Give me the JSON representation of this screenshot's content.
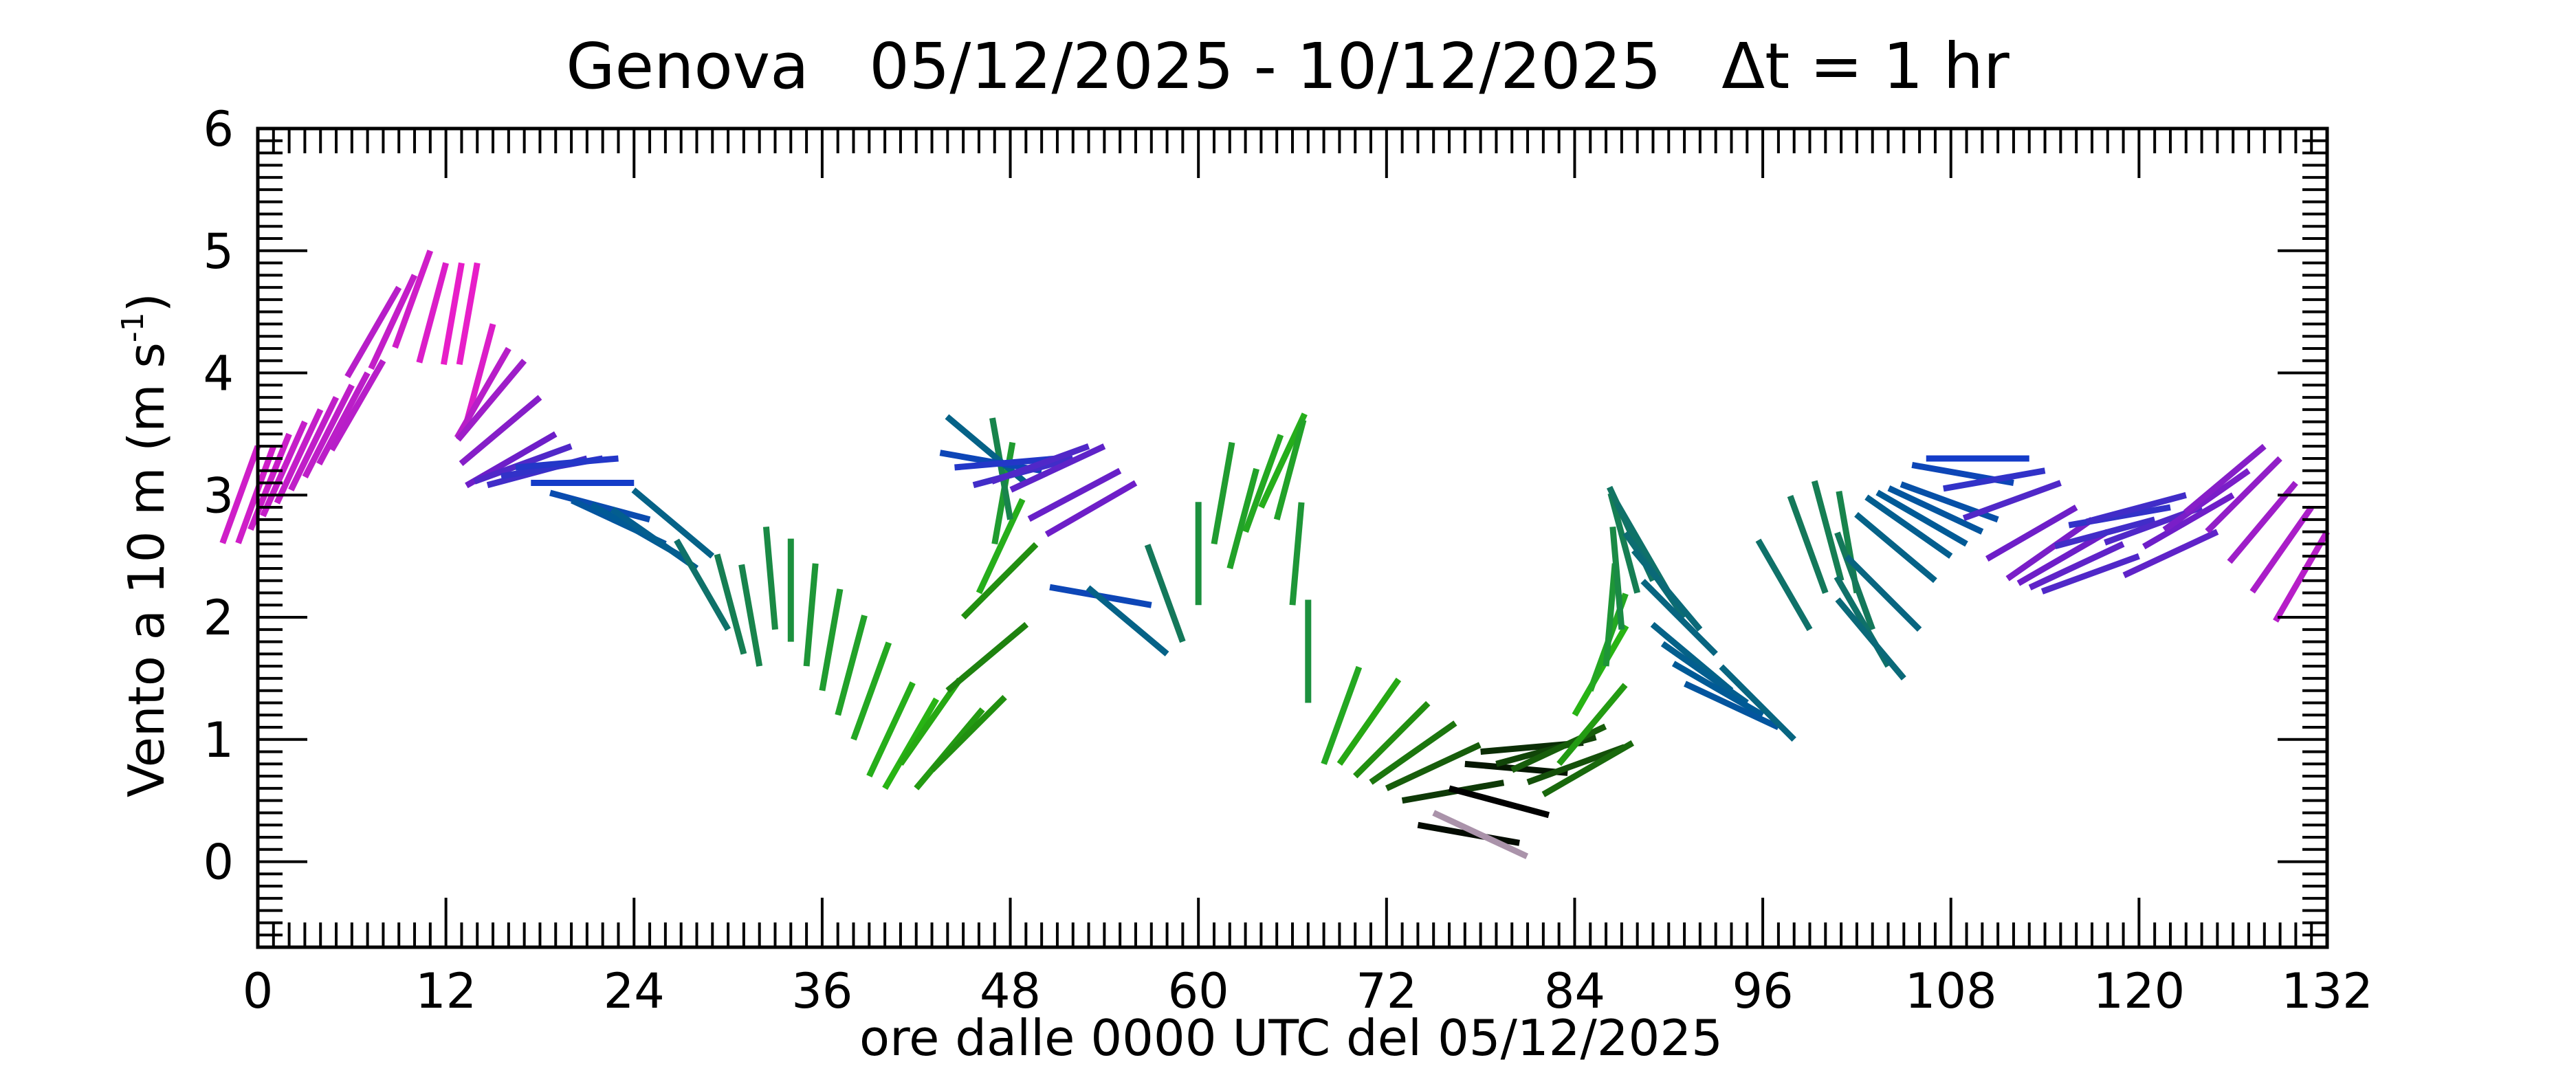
{
  "chart_data": {
    "type": "line",
    "title": "Genova   05/12/2025 - 10/12/2025   Δt = 1 hr",
    "xlabel": "ore dalle 0000 UTC del 05/12/2025",
    "ylabel": "Vento a 10 m (m s",
    "ylabel_exponent": "-1",
    "ylabel_close": ")",
    "xlim": [
      0,
      132
    ],
    "ylim": [
      -0.7,
      6
    ],
    "xticks": [
      0,
      12,
      24,
      36,
      48,
      60,
      72,
      84,
      96,
      108,
      120,
      132
    ],
    "yticks": [
      0,
      1,
      2,
      3,
      4,
      5,
      6
    ],
    "grid": false,
    "legend": "none",
    "glyph": "wind stick: segment anchored at the speed value, oriented by wind direction, coloured by direction",
    "series": [
      {
        "x": [
          0,
          1,
          2,
          3,
          4,
          5,
          6,
          7,
          8,
          9,
          10,
          11,
          12,
          13,
          14,
          15,
          16,
          17,
          18,
          19,
          20,
          21,
          22,
          23,
          24,
          25,
          26,
          27,
          28,
          29,
          30,
          31,
          32,
          33,
          34,
          35,
          36,
          37,
          38,
          39,
          40,
          41,
          42,
          43,
          44,
          45,
          46,
          47,
          48,
          49,
          50,
          51,
          52,
          53,
          54,
          55,
          56,
          57,
          58,
          59,
          60,
          61,
          62,
          63,
          64,
          65,
          66,
          67,
          68,
          69,
          70,
          71,
          72,
          73,
          74,
          75,
          76,
          77,
          78,
          79,
          80,
          81,
          82,
          83,
          84,
          85,
          86,
          87,
          88,
          89,
          90,
          91,
          92,
          93,
          94,
          95,
          96,
          97,
          98,
          99,
          100,
          101,
          102,
          103,
          104,
          105,
          106,
          107,
          108,
          109,
          110,
          111,
          112,
          113,
          114,
          115,
          116,
          117,
          118,
          119,
          120,
          121,
          122,
          123,
          124,
          125,
          126,
          127,
          128,
          129,
          130,
          131,
          132
        ],
        "speed": [
          3.4,
          3.4,
          3.5,
          3.6,
          3.7,
          3.8,
          3.9,
          4.0,
          4.1,
          4.7,
          4.8,
          5.0,
          4.9,
          4.9,
          4.9,
          4.4,
          4.2,
          4.1,
          3.8,
          3.5,
          3.4,
          3.3,
          3.3,
          3.3,
          3.1,
          2.8,
          2.6,
          2.5,
          2.4,
          2.5,
          1.9,
          1.7,
          1.6,
          1.9,
          1.8,
          1.6,
          1.4,
          1.2,
          1.0,
          0.7,
          0.6,
          0.8,
          0.6,
          0.75,
          1.4,
          2.0,
          2.2,
          2.6,
          2.8,
          3.1,
          3.2,
          3.3,
          3.3,
          3.4,
          3.4,
          3.2,
          3.1,
          2.1,
          1.7,
          1.8,
          2.1,
          2.6,
          2.4,
          2.7,
          2.9,
          2.8,
          2.1,
          1.3,
          0.8,
          0.8,
          0.7,
          0.65,
          0.6,
          0.5,
          0.3,
          0.4,
          0.6,
          0.8,
          0.9,
          0.8,
          0.75,
          0.65,
          0.55,
          0.8,
          1.2,
          1.4,
          1.6,
          1.9,
          2.2,
          2.3,
          2.2,
          2.0,
          1.9,
          1.7,
          1.4,
          1.3,
          1.2,
          1.1,
          1.0,
          1.9,
          2.2,
          2.3,
          2.2,
          1.9,
          1.6,
          1.5,
          1.9,
          2.3,
          2.5,
          2.6,
          2.7,
          2.8,
          3.1,
          3.3,
          3.2,
          3.1,
          2.9,
          2.8,
          2.7,
          2.6,
          2.5,
          2.8,
          2.9,
          3.0,
          2.9,
          2.7,
          3.0,
          3.2,
          3.4,
          3.3,
          3.1,
          2.9,
          2.7
        ],
        "direction_deg": [
          340,
          340,
          338,
          336,
          335,
          334,
          333,
          332,
          330,
          330,
          335,
          340,
          345,
          350,
          350,
          345,
          330,
          320,
          310,
          300,
          290,
          285,
          280,
          275,
          270,
          255,
          245,
          240,
          235,
          230,
          210,
          195,
          190,
          185,
          180,
          175,
          170,
          165,
          160,
          155,
          150,
          145,
          140,
          135,
          130,
          135,
          155,
          170,
          190,
          230,
          260,
          275,
          285,
          290,
          295,
          298,
          300,
          260,
          230,
          200,
          180,
          170,
          165,
          160,
          155,
          165,
          175,
          180,
          160,
          145,
          135,
          125,
          115,
          100,
          80,
          65,
          75,
          85,
          95,
          105,
          115,
          110,
          120,
          140,
          150,
          160,
          175,
          185,
          195,
          205,
          210,
          215,
          220,
          225,
          230,
          235,
          240,
          245,
          225,
          210,
          200,
          195,
          190,
          200,
          210,
          220,
          225,
          230,
          235,
          240,
          245,
          250,
          260,
          270,
          280,
          290,
          300,
          305,
          300,
          295,
          290,
          285,
          280,
          285,
          290,
          295,
          300,
          305,
          310,
          315,
          320,
          325,
          330
        ]
      }
    ]
  }
}
